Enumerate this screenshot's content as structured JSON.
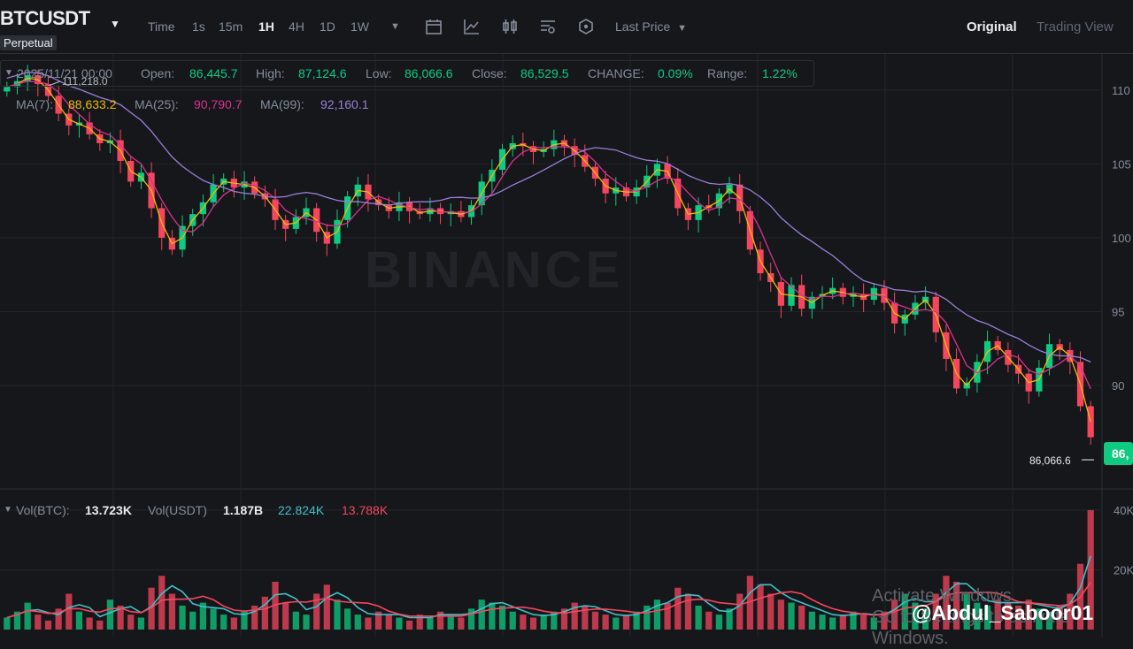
{
  "header": {
    "symbol": "BTCUSDT",
    "contract": "Perpetual",
    "timeframes": [
      "Time",
      "1s",
      "15m",
      "1H",
      "4H",
      "1D",
      "1W"
    ],
    "active_timeframe": "1H",
    "price_type": "Last Price",
    "views": {
      "original": "Original",
      "tradingview": "Trading View"
    },
    "icons": [
      "chevron-down-icon",
      "calendar-icon",
      "indicator-icon",
      "candle-type-icon",
      "settings-icon",
      "hexagon-icon"
    ]
  },
  "ohlc": {
    "date": "2025/11/21 00:00",
    "open_label": "Open:",
    "open": "86,445.7",
    "high_label": "High:",
    "high": "87,124.6",
    "low_label": "Low:",
    "low": "86,066.6",
    "close_label": "Close:",
    "close": "86,529.5",
    "change_label": "CHANGE:",
    "change": "0.09%",
    "range_label": "Range:",
    "range": "1.22%"
  },
  "ma": {
    "ma7_label": "MA(7):",
    "ma7": "88,633.2",
    "ma25_label": "MA(25):",
    "ma25": "90,790.7",
    "ma99_label": "MA(99):",
    "ma99": "92,160.1",
    "colors": {
      "ma7": "#f0b90b",
      "ma25": "#d6338f",
      "ma99": "#9b7ed8"
    }
  },
  "volume_legend": {
    "btc_label": "Vol(BTC):",
    "btc": "13.723K",
    "usdt_label": "Vol(USDT)",
    "usdt": "1.187B",
    "ma5": "22.824K",
    "ma10": "13.788K"
  },
  "colors": {
    "up": "#0ecb81",
    "down": "#f6465d",
    "background": "#16171b",
    "grid": "#22252b"
  },
  "chart_data": {
    "type": "candlestick",
    "price_axis_ticks": [
      "110",
      "105",
      "100",
      "95",
      "90"
    ],
    "volume_axis_ticks": [
      "40K",
      "20K"
    ],
    "price_range_thousands": [
      83.0,
      112.5
    ],
    "max_annotation": "111,218.0",
    "min_annotation": "86,066.6",
    "current_price_tag": "86,",
    "close_series_thousands": [
      110.2,
      110.6,
      111.0,
      110.4,
      109.6,
      108.4,
      107.6,
      107.8,
      107.0,
      106.4,
      106.6,
      105.2,
      103.8,
      104.4,
      102.0,
      100.0,
      99.2,
      100.8,
      101.6,
      102.4,
      103.6,
      104.0,
      103.4,
      103.8,
      103.0,
      102.6,
      101.2,
      100.6,
      101.4,
      102.0,
      100.4,
      99.6,
      101.2,
      102.8,
      103.6,
      102.6,
      102.2,
      101.8,
      102.4,
      101.8,
      101.6,
      102.0,
      101.6,
      101.8,
      101.4,
      102.2,
      103.8,
      104.6,
      106.0,
      106.4,
      106.2,
      105.8,
      106.0,
      106.6,
      106.2,
      105.6,
      104.8,
      104.0,
      103.0,
      103.4,
      102.8,
      103.4,
      104.2,
      105.0,
      104.0,
      102.0,
      101.2,
      102.2,
      102.0,
      103.0,
      103.6,
      101.8,
      99.2,
      97.6,
      97.0,
      95.4,
      96.8,
      95.2,
      96.0,
      96.2,
      96.6,
      96.0,
      96.2,
      95.8,
      96.6,
      95.6,
      94.2,
      94.8,
      95.6,
      96.0,
      93.6,
      91.8,
      89.8,
      90.2,
      91.6,
      93.0,
      92.4,
      91.4,
      90.8,
      89.6,
      91.2,
      92.8,
      92.4,
      91.6,
      88.6,
      86.5
    ],
    "volume_series_k": [
      4,
      6,
      9,
      5,
      3,
      7,
      12,
      6,
      4,
      3,
      10,
      8,
      5,
      4,
      14,
      18,
      12,
      8,
      6,
      9,
      7,
      5,
      4,
      6,
      8,
      11,
      16,
      9,
      6,
      5,
      12,
      15,
      10,
      7,
      5,
      4,
      6,
      5,
      4,
      3,
      5,
      4,
      6,
      5,
      4,
      7,
      10,
      9,
      8,
      6,
      5,
      4,
      5,
      6,
      7,
      9,
      8,
      6,
      5,
      4,
      5,
      6,
      8,
      10,
      9,
      14,
      12,
      8,
      6,
      5,
      7,
      12,
      18,
      15,
      12,
      10,
      9,
      8,
      6,
      5,
      4,
      5,
      6,
      5,
      4,
      6,
      10,
      12,
      9,
      7,
      12,
      18,
      16,
      12,
      9,
      8,
      10,
      9,
      8,
      10,
      7,
      6,
      8,
      12,
      22,
      40
    ]
  },
  "overlay": {
    "watermark": "BINANCE",
    "windows_notice_1": "Activate Windows",
    "windows_notice_2": "Go to Settings to activate Windows.",
    "handle": "@Abdul_Saboor01"
  }
}
